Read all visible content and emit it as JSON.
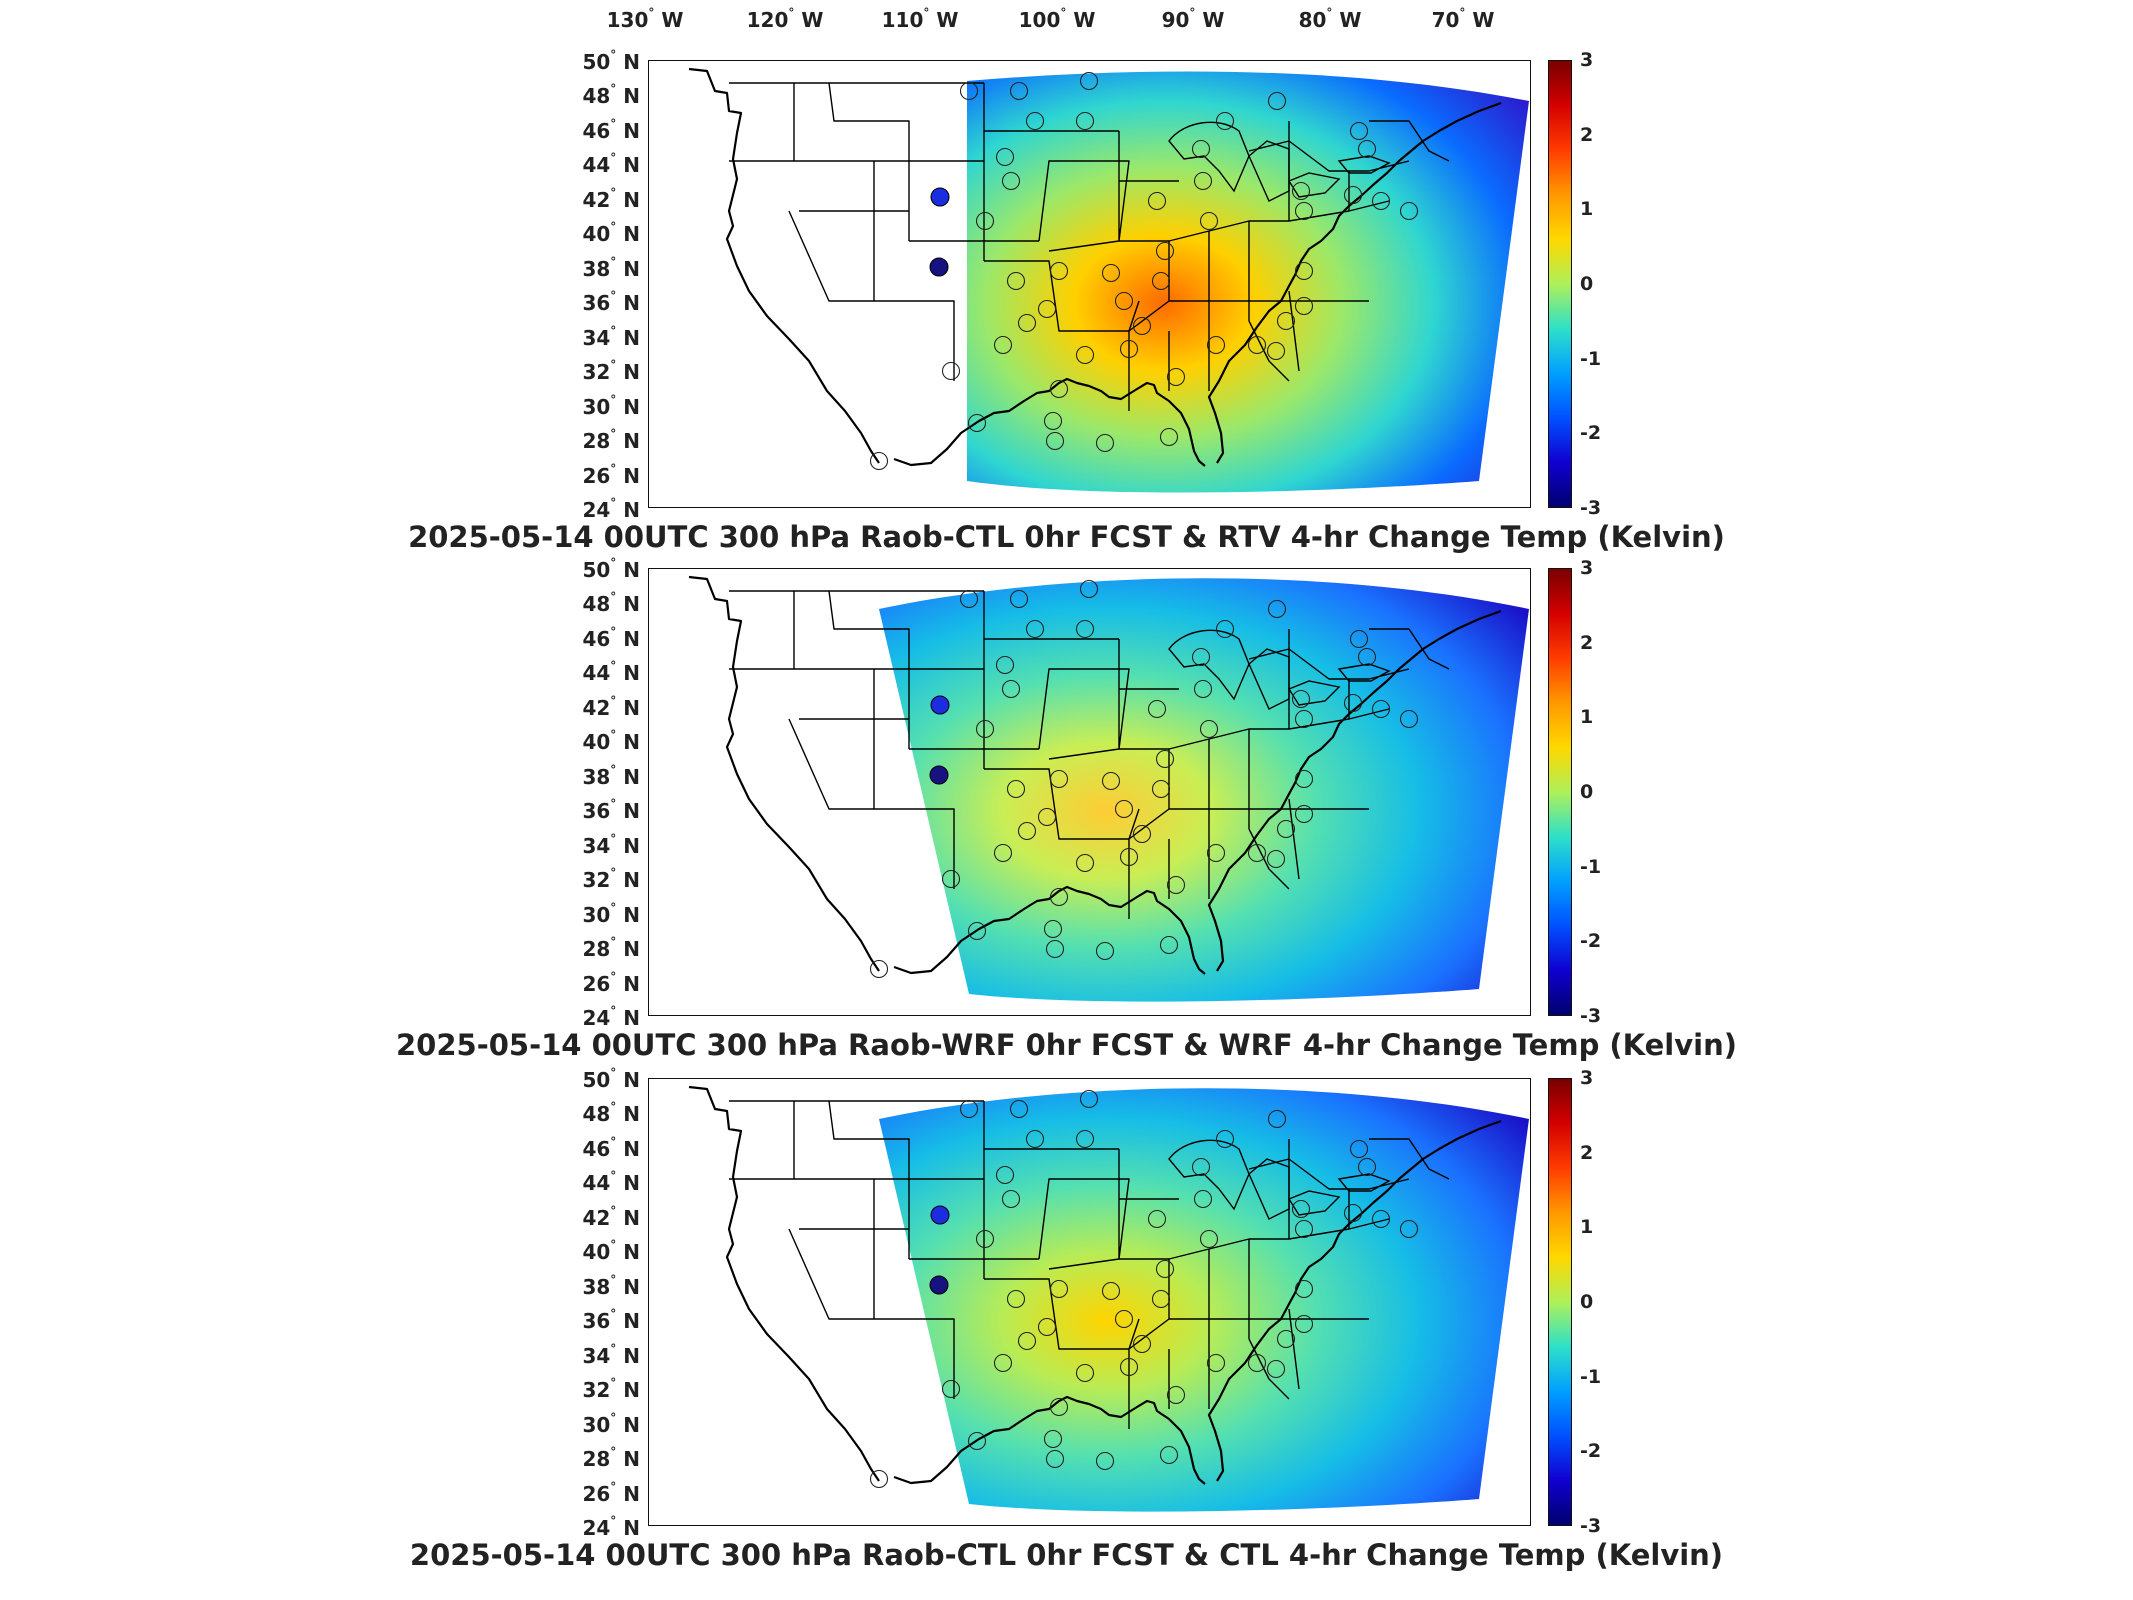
{
  "longitude_labels": [
    "130",
    "120",
    "110",
    "100",
    "90",
    "80",
    "70"
  ],
  "longitude_suffix": "W",
  "latitude_labels": [
    "50",
    "48",
    "46",
    "44",
    "42",
    "40",
    "38",
    "36",
    "34",
    "32",
    "30",
    "28",
    "26",
    "24"
  ],
  "latitude_suffix": "N",
  "degree_symbol": "°",
  "colorbar": {
    "ticks": [
      "3",
      "2",
      "1",
      "0",
      "-1",
      "-2",
      "-3"
    ],
    "range": [
      -3,
      3
    ],
    "colors": [
      "#00006e",
      "#1000d0",
      "#0050ff",
      "#00a0ff",
      "#2ee0c8",
      "#aef05a",
      "#ffd800",
      "#ff9900",
      "#ff3c00",
      "#d40000",
      "#7a0000"
    ]
  },
  "panels": [
    {
      "title": "2025-05-14 00UTC 300 hPa Raob-CTL 0hr FCST & RTV 4-hr Change Temp (Kelvin)"
    },
    {
      "title": "2025-05-14 00UTC 300 hPa Raob-WRF 0hr FCST & WRF 4-hr Change Temp (Kelvin)"
    },
    {
      "title": "2025-05-14 00UTC 300 hPa Raob-CTL 0hr FCST & CTL 4-hr Change Temp (Kelvin)"
    }
  ]
}
